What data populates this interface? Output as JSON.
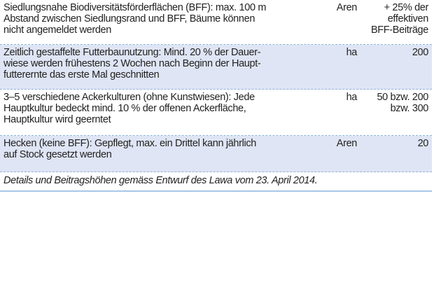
{
  "table": {
    "rows": [
      {
        "description": [
          "Siedlungsnahe Biodiversitätsförderflächen (BFF):   max. 100 m",
          "Abstand zwischen Siedlungsrand und BFF, Bäume können",
          "nicht angemeldet werden"
        ],
        "unit": "Aren",
        "amount": [
          "+ 25% der",
          "effektiven",
          "BFF-Beiträge"
        ]
      },
      {
        "description": [
          "Zeitlich gestaffelte Futterbaunutzung: Mind. 20 % der Dauer-",
          "wiese werden frühestens 2 Wochen nach Beginn der Haupt-",
          "futterernte das erste Mal geschnitten"
        ],
        "unit": "ha",
        "amount": [
          "200"
        ]
      },
      {
        "description": [
          "3–5 verschiedene Ackerkulturen (ohne Kunstwiesen): Jede",
          "Hauptkultur bedeckt mind. 10 % der offenen Ackerfläche,",
          "Hauptkultur wird geerntet"
        ],
        "unit": "ha",
        "amount": [
          "50 bzw. 200",
          "bzw. 300"
        ]
      },
      {
        "description": [
          "Hecken (keine BFF): Gepflegt, max. ein Drittel kann jährlich",
          "auf Stock gesetzt werden"
        ],
        "unit": "Aren",
        "amount": [
          "20"
        ]
      }
    ],
    "note": "Details und Beitragshöhen gemäss Entwurf des Lawa vom 23. April 2014."
  }
}
